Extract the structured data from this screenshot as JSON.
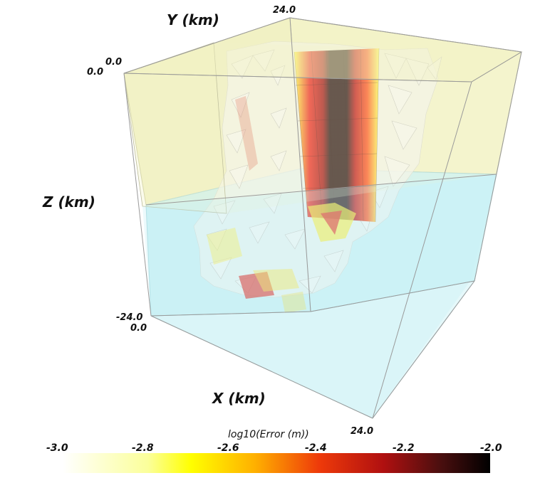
{
  "axes": {
    "x_title": "X (km)",
    "y_title": "Y (km)",
    "z_title": "Z (km)",
    "x_min": "0.0",
    "x_max": "24.0",
    "y_min": "0.0",
    "y_max": "24.0",
    "z_top": "0.0",
    "z_bottom": "-24.0"
  },
  "colorbar": {
    "title": "log10(Error (m))",
    "ticks": [
      "-3.0",
      "-2.8",
      "-2.6",
      "-2.4",
      "-2.2",
      "-2.0"
    ],
    "range": [
      -3.0,
      -2.0
    ],
    "colors": [
      "#ffffff",
      "#ffff00",
      "#ff9900",
      "#dd1111",
      "#661111",
      "#000000"
    ]
  },
  "layers": {
    "upper_color": "#f1f1c2",
    "lower_color": "#c9f2f5"
  }
}
